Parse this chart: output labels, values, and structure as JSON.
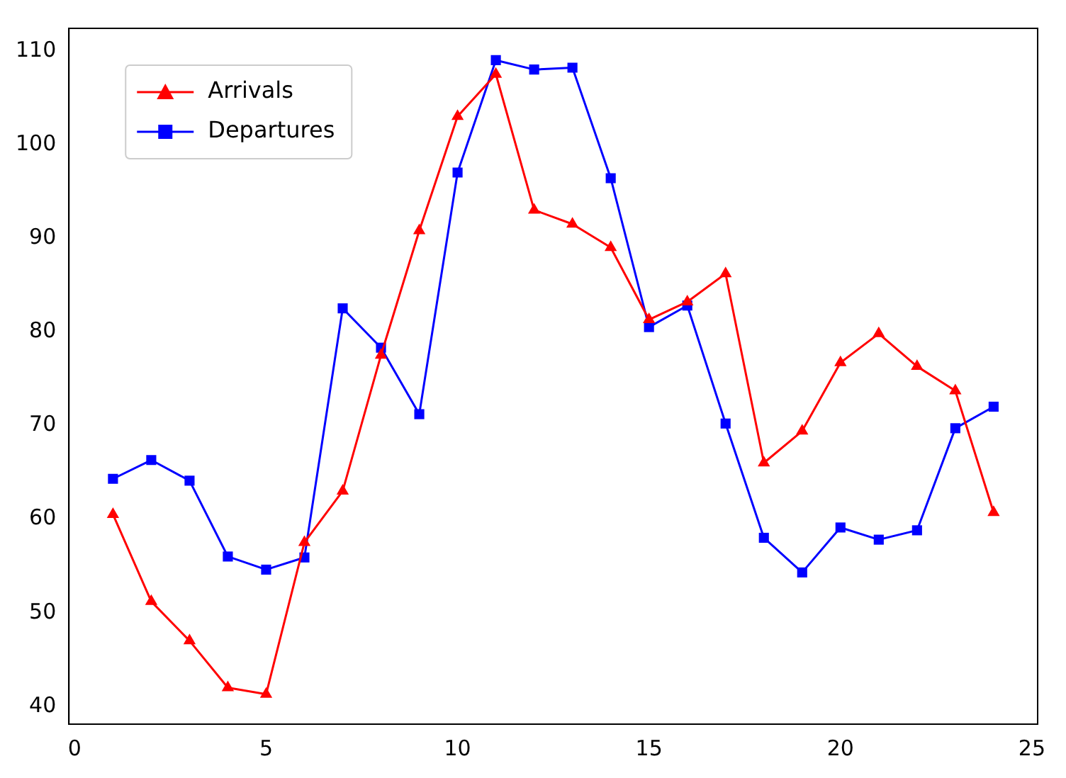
{
  "chart_data": {
    "type": "line",
    "x": [
      1,
      2,
      3,
      4,
      5,
      6,
      7,
      8,
      9,
      10,
      11,
      12,
      13,
      14,
      15,
      16,
      17,
      18,
      19,
      20,
      21,
      22,
      23,
      24
    ],
    "series": [
      {
        "name": "Arrivals",
        "color": "#ff0000",
        "marker": "triangle",
        "values": [
          60.5,
          51.2,
          47,
          42,
          41.3,
          57.5,
          63,
          77.5,
          90.8,
          103,
          107.5,
          93,
          91.5,
          89,
          81.3,
          83.2,
          86.2,
          66,
          69.4,
          76.7,
          79.8,
          76.3,
          73.7,
          60.7
        ]
      },
      {
        "name": "Departures",
        "color": "#0000ff",
        "marker": "square",
        "values": [
          64.3,
          66.3,
          64.1,
          56,
          54.6,
          55.9,
          82.5,
          78.3,
          71.2,
          97,
          109,
          108,
          108.2,
          96.4,
          80.5,
          82.8,
          70.2,
          58,
          54.3,
          59.1,
          57.8,
          58.8,
          69.7,
          72
        ]
      }
    ],
    "xlim": [
      -0.15,
      25.15
    ],
    "xticks": [
      0,
      5,
      10,
      15,
      20,
      25
    ],
    "ylim": [
      38.1,
      112.4
    ],
    "yticks": [
      40,
      50,
      60,
      70,
      80,
      90,
      100,
      110
    ],
    "legend": "top left",
    "grid": false,
    "line_style": "solid"
  }
}
